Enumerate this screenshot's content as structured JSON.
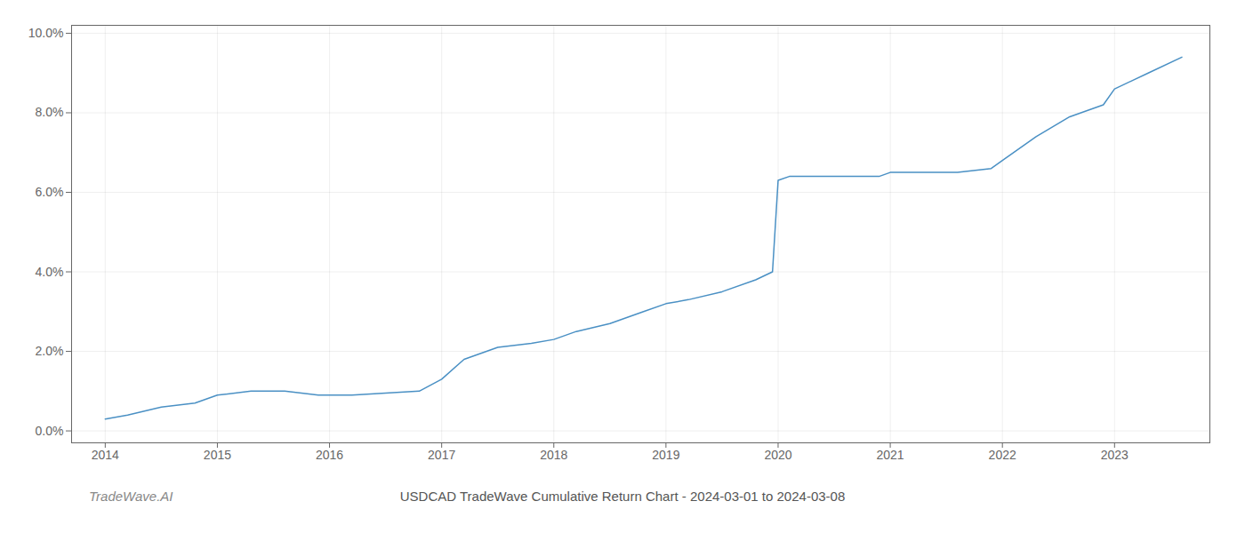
{
  "chart_data": {
    "type": "line",
    "title": "USDCAD TradeWave Cumulative Return Chart - 2024-03-01 to 2024-03-08",
    "annotations": [
      "TradeWave.AI"
    ],
    "x": [
      2014.0,
      2014.2,
      2014.5,
      2014.8,
      2015.0,
      2015.3,
      2015.6,
      2015.9,
      2016.0,
      2016.2,
      2016.5,
      2016.8,
      2017.0,
      2017.2,
      2017.5,
      2017.8,
      2018.0,
      2018.2,
      2018.5,
      2018.8,
      2019.0,
      2019.2,
      2019.5,
      2019.8,
      2019.95,
      2020.0,
      2020.1,
      2020.3,
      2020.6,
      2020.9,
      2021.0,
      2021.3,
      2021.6,
      2021.9,
      2022.0,
      2022.3,
      2022.6,
      2022.9,
      2023.0,
      2023.3,
      2023.6
    ],
    "values": [
      0.003,
      0.004,
      0.006,
      0.007,
      0.009,
      0.01,
      0.01,
      0.009,
      0.009,
      0.009,
      0.0095,
      0.01,
      0.013,
      0.018,
      0.021,
      0.022,
      0.023,
      0.025,
      0.027,
      0.03,
      0.032,
      0.033,
      0.035,
      0.038,
      0.04,
      0.063,
      0.064,
      0.064,
      0.064,
      0.064,
      0.065,
      0.065,
      0.065,
      0.066,
      0.068,
      0.074,
      0.079,
      0.082,
      0.086,
      0.09,
      0.094
    ],
    "color": "#4a90c4",
    "xlim": [
      2013.7,
      2023.85
    ],
    "ylim": [
      -0.003,
      0.102
    ],
    "xticks": [
      2014,
      2015,
      2016,
      2017,
      2018,
      2019,
      2020,
      2021,
      2022,
      2023
    ],
    "yticks": [
      {
        "value": 0.0,
        "label": "0.0%"
      },
      {
        "value": 0.02,
        "label": "2.0%"
      },
      {
        "value": 0.04,
        "label": "4.0%"
      },
      {
        "value": 0.06,
        "label": "6.0%"
      },
      {
        "value": 0.08,
        "label": "8.0%"
      },
      {
        "value": 0.1,
        "label": "10.0%"
      }
    ],
    "grid": true
  }
}
